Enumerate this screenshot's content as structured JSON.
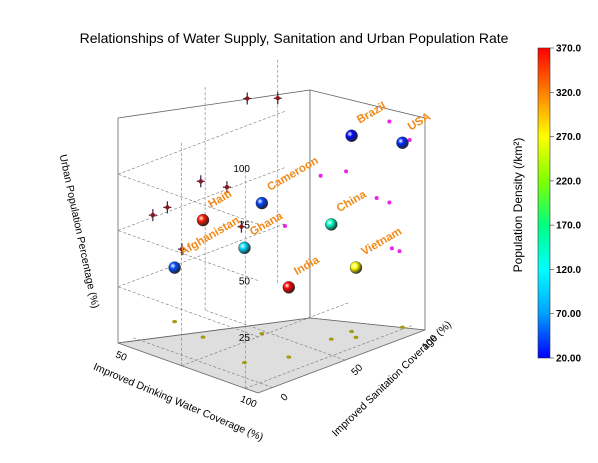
{
  "chart_data": {
    "type": "scatter",
    "title": "Relationships of Water Supply, Sanitation and Urban Population Rate",
    "xlabel": "Improved Drinking Water Coverage (%)",
    "ylabel": "Improved Sanitation Coverage (%)",
    "zlabel": "Urban Population Percentage (%)",
    "xlim": [
      50,
      105
    ],
    "ylim": [
      -10,
      105
    ],
    "zlim": [
      0,
      100
    ],
    "x_ticks": [
      "50",
      "100"
    ],
    "y_ticks": [
      "0",
      "50",
      "100"
    ],
    "z_ticks": [
      "25",
      "50",
      "75",
      "100"
    ],
    "colorbar": {
      "title": "Population Density (/km²)",
      "range": [
        20,
        370
      ],
      "ticks": [
        "20.00",
        "70.00",
        "120.0",
        "170.0",
        "220.0",
        "270.0",
        "320.0",
        "370.0"
      ],
      "colors": [
        "#0000ff",
        "#00a0ff",
        "#00ffff",
        "#00ff80",
        "#80ff00",
        "#ffff00",
        "#ff8000",
        "#ff0000"
      ]
    },
    "grid": true,
    "series": [
      {
        "points": [
          {
            "label": "Brazil",
            "x": 91,
            "y": 79,
            "z": 87,
            "density": 23
          },
          {
            "label": "USA",
            "x": 99,
            "y": 100,
            "z": 82,
            "density": 32
          },
          {
            "label": "Cameroon",
            "x": 74,
            "y": 47,
            "z": 58,
            "density": 40
          },
          {
            "label": "Haiti",
            "x": 64,
            "y": 24,
            "z": 52,
            "density": 360
          },
          {
            "label": "Afghanistan",
            "x": 50,
            "y": 29,
            "z": 24,
            "density": 44
          },
          {
            "label": "Ghana",
            "x": 86,
            "y": 14,
            "z": 51,
            "density": 100
          },
          {
            "label": "China",
            "x": 91,
            "y": 65,
            "z": 51,
            "density": 143
          },
          {
            "label": "Vietnam",
            "x": 95,
            "y": 75,
            "z": 31,
            "density": 270
          },
          {
            "label": "India",
            "x": 92,
            "y": 34,
            "z": 31,
            "density": 370
          }
        ]
      }
    ]
  }
}
